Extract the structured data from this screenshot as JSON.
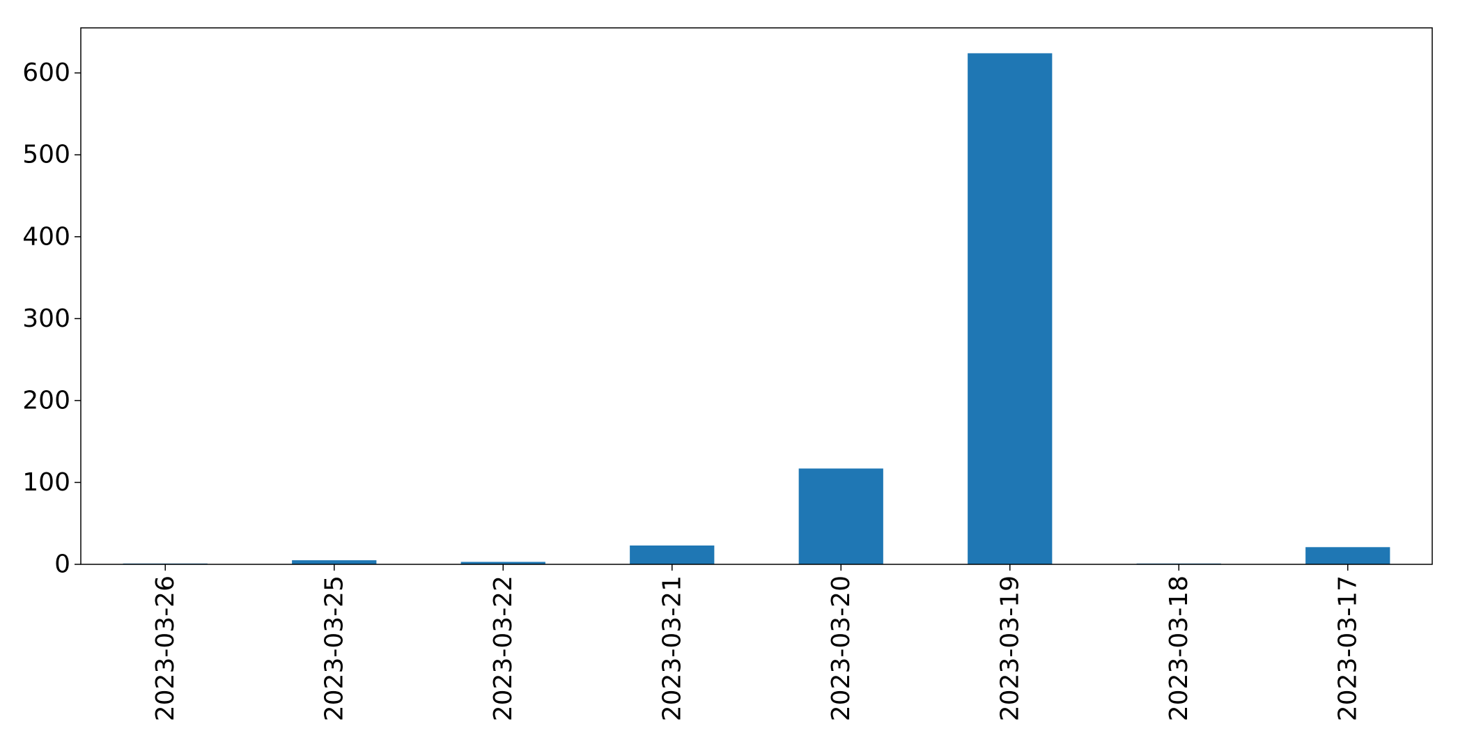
{
  "chart_data": {
    "type": "bar",
    "title": "",
    "xlabel": "",
    "ylabel": "",
    "categories": [
      "2023-03-26",
      "2023-03-25",
      "2023-03-22",
      "2023-03-21",
      "2023-03-20",
      "2023-03-19",
      "2023-03-18",
      "2023-03-17"
    ],
    "series": [
      {
        "values": [
          1,
          5,
          3,
          23,
          117,
          624,
          1,
          21
        ]
      }
    ],
    "ylim": [
      0,
      655
    ],
    "yticks": [
      "0",
      "100",
      "200",
      "300",
      "400",
      "500",
      "600"
    ],
    "bar_color": "#1f77b4",
    "grid": false,
    "legend": "none"
  }
}
